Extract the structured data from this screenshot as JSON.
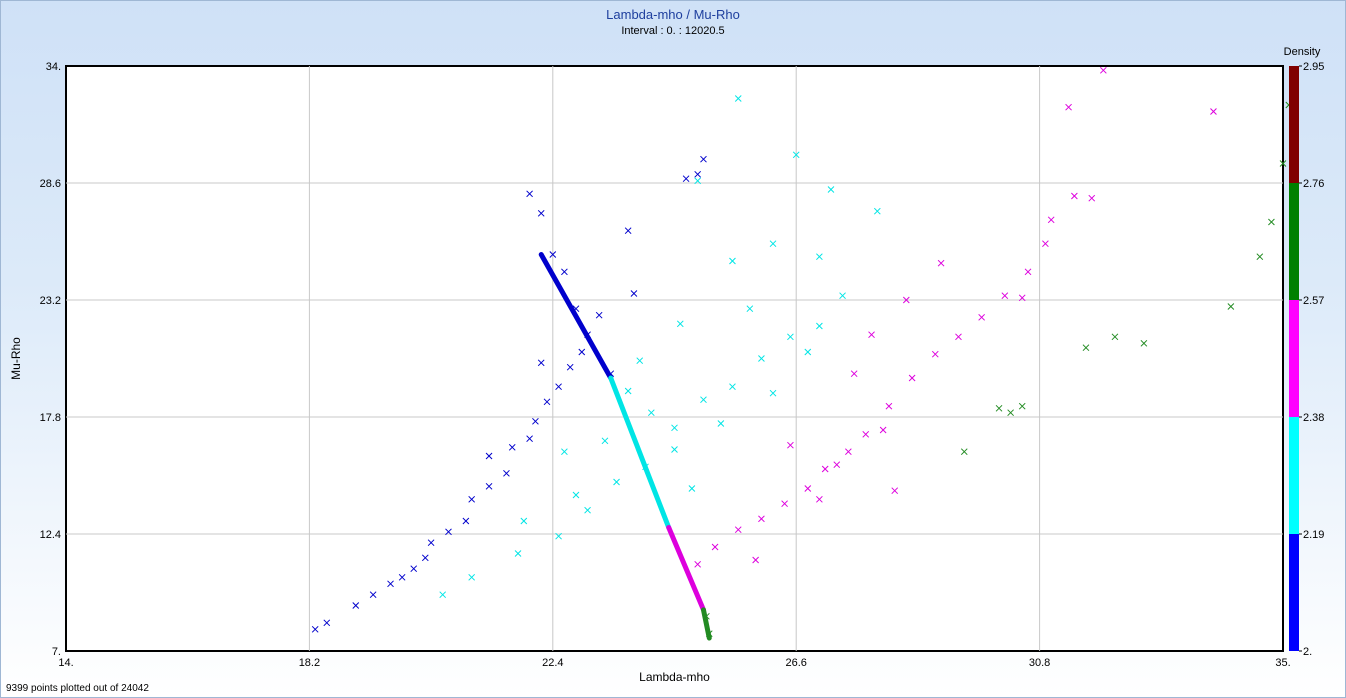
{
  "header": {
    "title": "Lambda-mho / Mu-Rho",
    "subtitle": "Interval : 0. : 12020.5"
  },
  "footer": {
    "status": "9399 points plotted out of 24042"
  },
  "colorbar": {
    "title": "Density",
    "ticks": [
      "2.",
      "2.19",
      "2.38",
      "2.57",
      "2.76",
      "2.95"
    ],
    "values": [
      2.0,
      2.19,
      2.38,
      2.57,
      2.76,
      2.95
    ],
    "colors": [
      "#0000ff",
      "#00ffff",
      "#ff00ff",
      "#008000",
      "#800000"
    ]
  },
  "chart_data": {
    "type": "scatter",
    "title": "Lambda-mho / Mu-Rho",
    "subtitle": "Interval : 0. : 12020.5",
    "xlabel": "Lambda-mho",
    "ylabel": "Mu-Rho",
    "xlim": [
      14,
      35
    ],
    "ylim": [
      7,
      34
    ],
    "x_ticks": [
      "14.",
      "18.2",
      "22.4",
      "26.6",
      "30.8",
      "35."
    ],
    "y_ticks": [
      "7.",
      "12.4",
      "17.8",
      "23.2",
      "28.6",
      "34."
    ],
    "grid": true,
    "marker": "x",
    "color_by": "Density",
    "series": [
      {
        "color": "#0000cc",
        "points": [
          [
            18.3,
            8.0
          ],
          [
            18.5,
            8.3
          ],
          [
            19.0,
            9.1
          ],
          [
            19.3,
            9.6
          ],
          [
            19.6,
            10.1
          ],
          [
            19.8,
            10.4
          ],
          [
            20.0,
            10.8
          ],
          [
            20.2,
            11.3
          ],
          [
            20.3,
            12.0
          ],
          [
            20.6,
            12.5
          ],
          [
            20.9,
            13.0
          ],
          [
            21.0,
            14.0
          ],
          [
            21.3,
            14.6
          ],
          [
            21.6,
            15.2
          ],
          [
            21.7,
            16.4
          ],
          [
            22.0,
            16.8
          ],
          [
            22.1,
            17.6
          ],
          [
            22.3,
            18.5
          ],
          [
            22.5,
            19.2
          ],
          [
            22.7,
            20.1
          ],
          [
            22.9,
            20.8
          ],
          [
            23.0,
            21.6
          ],
          [
            23.2,
            22.5
          ],
          [
            23.4,
            19.8
          ],
          [
            22.2,
            27.2
          ],
          [
            22.0,
            28.1
          ],
          [
            22.4,
            25.3
          ],
          [
            22.6,
            24.5
          ],
          [
            23.7,
            26.4
          ],
          [
            24.9,
            29.0
          ],
          [
            25.0,
            29.7
          ],
          [
            24.7,
            28.8
          ],
          [
            21.3,
            16.0
          ],
          [
            22.2,
            20.3
          ],
          [
            22.8,
            22.8
          ],
          [
            23.8,
            23.5
          ]
        ]
      },
      {
        "color": "#00e5e5",
        "points": [
          [
            20.5,
            9.6
          ],
          [
            21.0,
            10.4
          ],
          [
            21.8,
            11.5
          ],
          [
            22.5,
            12.3
          ],
          [
            23.0,
            13.5
          ],
          [
            23.5,
            14.8
          ],
          [
            22.6,
            16.2
          ],
          [
            24.0,
            15.5
          ],
          [
            24.5,
            17.3
          ],
          [
            25.0,
            18.6
          ],
          [
            25.5,
            19.2
          ],
          [
            26.0,
            20.5
          ],
          [
            26.5,
            21.5
          ],
          [
            27.0,
            22.0
          ],
          [
            27.4,
            23.4
          ],
          [
            25.8,
            22.8
          ],
          [
            24.6,
            22.1
          ],
          [
            23.9,
            20.4
          ],
          [
            23.7,
            19.0
          ],
          [
            24.1,
            18.0
          ],
          [
            24.5,
            16.3
          ],
          [
            24.8,
            14.5
          ],
          [
            25.3,
            17.5
          ],
          [
            26.2,
            18.9
          ],
          [
            26.8,
            20.8
          ],
          [
            25.5,
            25.0
          ],
          [
            26.2,
            25.8
          ],
          [
            26.6,
            29.9
          ],
          [
            25.6,
            32.5
          ],
          [
            24.9,
            28.7
          ],
          [
            27.2,
            28.3
          ],
          [
            28.0,
            27.3
          ],
          [
            27.0,
            25.2
          ],
          [
            22.8,
            14.2
          ],
          [
            21.9,
            13.0
          ],
          [
            23.3,
            16.7
          ]
        ]
      },
      {
        "color": "#dd00dd",
        "points": [
          [
            24.9,
            11.0
          ],
          [
            25.2,
            11.8
          ],
          [
            25.6,
            12.6
          ],
          [
            26.0,
            13.1
          ],
          [
            26.4,
            13.8
          ],
          [
            26.8,
            14.5
          ],
          [
            27.1,
            15.4
          ],
          [
            27.5,
            16.2
          ],
          [
            27.8,
            17.0
          ],
          [
            28.2,
            18.3
          ],
          [
            28.6,
            19.6
          ],
          [
            29.0,
            20.7
          ],
          [
            29.4,
            21.5
          ],
          [
            29.8,
            22.4
          ],
          [
            30.2,
            23.4
          ],
          [
            30.6,
            24.5
          ],
          [
            30.9,
            25.8
          ],
          [
            29.1,
            24.9
          ],
          [
            28.5,
            23.2
          ],
          [
            27.9,
            21.6
          ],
          [
            27.6,
            19.8
          ],
          [
            28.1,
            17.2
          ],
          [
            26.5,
            16.5
          ],
          [
            27.0,
            14.0
          ],
          [
            28.3,
            14.4
          ],
          [
            25.9,
            11.2
          ],
          [
            31.0,
            26.9
          ],
          [
            31.4,
            28.0
          ],
          [
            31.3,
            32.1
          ],
          [
            33.8,
            31.9
          ],
          [
            31.9,
            33.8
          ],
          [
            31.7,
            27.9
          ],
          [
            30.5,
            23.3
          ],
          [
            27.3,
            15.6
          ]
        ]
      },
      {
        "color": "#228b22",
        "points": [
          [
            25.05,
            8.6
          ],
          [
            25.1,
            7.8
          ],
          [
            30.1,
            18.2
          ],
          [
            30.3,
            18.0
          ],
          [
            30.5,
            18.3
          ],
          [
            29.5,
            16.2
          ],
          [
            32.1,
            21.5
          ],
          [
            31.6,
            21.0
          ],
          [
            32.6,
            21.2
          ],
          [
            34.1,
            22.9
          ],
          [
            34.6,
            25.2
          ],
          [
            34.8,
            26.8
          ],
          [
            35.0,
            29.5
          ],
          [
            35.1,
            32.2
          ]
        ]
      }
    ],
    "density_line": [
      {
        "x0": 22.2,
        "y0": 25.3,
        "x1": 23.4,
        "y1": 19.6,
        "color": "#0000cc"
      },
      {
        "x0": 23.4,
        "y0": 19.6,
        "x1": 24.4,
        "y1": 12.7,
        "color": "#00e5e5"
      },
      {
        "x0": 24.4,
        "y0": 12.7,
        "x1": 25.0,
        "y1": 8.9,
        "color": "#dd00dd"
      },
      {
        "x0": 25.0,
        "y0": 8.9,
        "x1": 25.1,
        "y1": 7.6,
        "color": "#228b22"
      }
    ]
  }
}
